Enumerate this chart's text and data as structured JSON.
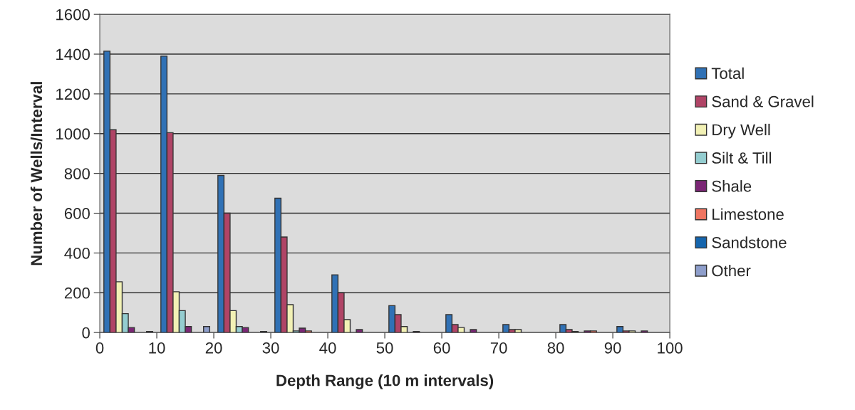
{
  "chart_data": {
    "type": "bar",
    "xlabel": "Depth Range (10 m intervals)",
    "ylabel": "Number of Wells/Interval",
    "xlim": [
      0,
      100
    ],
    "xticks": [
      0,
      10,
      20,
      30,
      40,
      50,
      60,
      70,
      80,
      90,
      100
    ],
    "ylim": [
      0,
      1600
    ],
    "yticks": [
      0,
      200,
      400,
      600,
      800,
      1000,
      1200,
      1400,
      1600
    ],
    "grid": "y",
    "legend": "right",
    "x": [
      5,
      15,
      25,
      35,
      45,
      55,
      65,
      75,
      85,
      95
    ],
    "series": [
      {
        "name": "Total",
        "color": "#3071b5",
        "values": [
          1415,
          1390,
          790,
          675,
          290,
          135,
          90,
          40,
          40,
          30
        ]
      },
      {
        "name": "Sand & Gravel",
        "color": "#b04466",
        "values": [
          1020,
          1005,
          600,
          480,
          200,
          90,
          40,
          15,
          15,
          8
        ]
      },
      {
        "name": "Dry Well",
        "color": "#f2f1b5",
        "values": [
          255,
          205,
          110,
          140,
          65,
          30,
          25,
          15,
          5,
          8
        ]
      },
      {
        "name": "Silt & Till",
        "color": "#94cdd0",
        "values": [
          95,
          110,
          30,
          8,
          null,
          null,
          null,
          null,
          null,
          null
        ]
      },
      {
        "name": "Shale",
        "color": "#7b2675",
        "values": [
          25,
          30,
          25,
          22,
          15,
          5,
          15,
          null,
          8,
          8
        ]
      },
      {
        "name": "Limestone",
        "color": "#ef7561",
        "values": [
          null,
          null,
          null,
          8,
          null,
          null,
          null,
          null,
          8,
          null
        ]
      },
      {
        "name": "Sandstone",
        "color": "#1565ad",
        "values": [
          null,
          null,
          null,
          null,
          null,
          null,
          null,
          null,
          null,
          null
        ]
      },
      {
        "name": "Other",
        "color": "#8e9ecb",
        "values": [
          5,
          30,
          5,
          null,
          null,
          null,
          null,
          null,
          null,
          null
        ]
      }
    ]
  }
}
